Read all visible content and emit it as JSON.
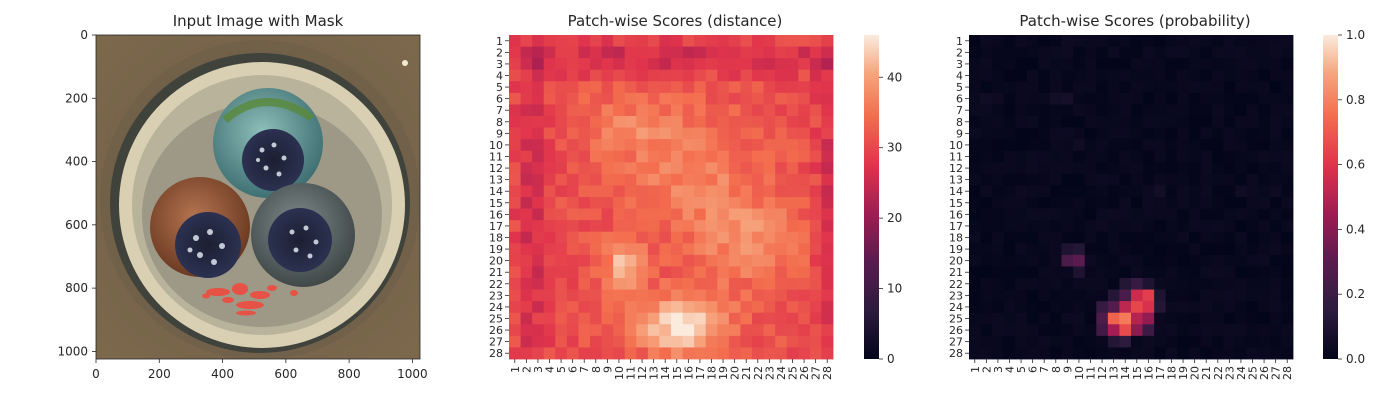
{
  "panels": {
    "image": {
      "title": "Input Image with Mask",
      "x_ticks": [
        "0",
        "200",
        "400",
        "600",
        "800",
        "1000"
      ],
      "y_ticks": [
        "0",
        "200",
        "400",
        "600",
        "800",
        "1000"
      ],
      "xlim": [
        0,
        1024
      ],
      "ylim": [
        0,
        1024
      ]
    },
    "distance": {
      "title": "Patch-wise Scores (distance)"
    },
    "probability": {
      "title": "Patch-wise Scores (probability)"
    }
  },
  "chart_data": [
    {
      "type": "heatmap",
      "title": "Patch-wise Scores (distance)",
      "rows": 28,
      "cols": 28,
      "row_labels": [
        "1",
        "2",
        "3",
        "4",
        "5",
        "6",
        "7",
        "8",
        "9",
        "10",
        "11",
        "12",
        "13",
        "14",
        "15",
        "16",
        "17",
        "18",
        "19",
        "20",
        "21",
        "22",
        "23",
        "24",
        "25",
        "26",
        "27",
        "28"
      ],
      "col_labels": [
        "1",
        "2",
        "3",
        "4",
        "5",
        "6",
        "7",
        "8",
        "9",
        "10",
        "11",
        "12",
        "13",
        "14",
        "15",
        "16",
        "17",
        "18",
        "19",
        "20",
        "21",
        "22",
        "23",
        "24",
        "25",
        "26",
        "27",
        "28"
      ],
      "colorbar": {
        "min": 0,
        "max": 46,
        "ticks": [
          "0",
          "10",
          "20",
          "30",
          "40"
        ],
        "colormap": "rocket"
      },
      "model": {
        "base": 31,
        "blobs": [
          {
            "row": 24.5,
            "col": 14.5,
            "sr": 1.8,
            "sc": 2.8,
            "amp": 15
          },
          {
            "row": 19.5,
            "col": 9.5,
            "sr": 1.6,
            "sc": 1.2,
            "amp": 12
          },
          {
            "row": 17.5,
            "col": 20.5,
            "sr": 2.5,
            "sc": 3.0,
            "amp": 7
          },
          {
            "row": 11.5,
            "col": 15.5,
            "sr": 4.0,
            "sc": 4.0,
            "amp": 6
          },
          {
            "row": 7.5,
            "col": 9.5,
            "sr": 2.0,
            "sc": 3.0,
            "amp": 5
          },
          {
            "row": 1.5,
            "col": 14.5,
            "sr": 1.0,
            "sc": 14.0,
            "amp": -6
          },
          {
            "row": 14.5,
            "col": 1.5,
            "sr": 14.0,
            "sc": 1.0,
            "amp": -5
          },
          {
            "row": 14.5,
            "col": 27.5,
            "sr": 14.0,
            "sc": 1.0,
            "amp": -5
          }
        ],
        "noise": 2.5
      }
    },
    {
      "type": "heatmap",
      "title": "Patch-wise Scores (probability)",
      "rows": 28,
      "cols": 28,
      "row_labels": [
        "1",
        "2",
        "3",
        "4",
        "5",
        "6",
        "7",
        "8",
        "9",
        "10",
        "11",
        "12",
        "13",
        "14",
        "15",
        "16",
        "17",
        "18",
        "19",
        "20",
        "21",
        "22",
        "23",
        "24",
        "25",
        "26",
        "27",
        "28"
      ],
      "col_labels": [
        "1",
        "2",
        "3",
        "4",
        "5",
        "6",
        "7",
        "8",
        "9",
        "10",
        "11",
        "12",
        "13",
        "14",
        "15",
        "16",
        "17",
        "18",
        "19",
        "20",
        "21",
        "22",
        "23",
        "24",
        "25",
        "26",
        "27",
        "28"
      ],
      "colorbar": {
        "min": 0,
        "max": 1,
        "ticks": [
          "0.0",
          "0.2",
          "0.4",
          "0.6",
          "0.8",
          "1.0"
        ],
        "colormap": "rocket"
      },
      "hot_cells": [
        {
          "row": 23,
          "col": 15,
          "value": 0.55
        },
        {
          "row": 23,
          "col": 16,
          "value": 0.62
        },
        {
          "row": 24,
          "col": 14,
          "value": 0.52
        },
        {
          "row": 24,
          "col": 15,
          "value": 0.65
        },
        {
          "row": 24,
          "col": 16,
          "value": 0.58
        },
        {
          "row": 25,
          "col": 13,
          "value": 0.72
        },
        {
          "row": 25,
          "col": 14,
          "value": 0.78
        },
        {
          "row": 25,
          "col": 15,
          "value": 0.5
        },
        {
          "row": 25,
          "col": 16,
          "value": 0.42
        },
        {
          "row": 26,
          "col": 13,
          "value": 0.46
        },
        {
          "row": 26,
          "col": 14,
          "value": 0.66
        },
        {
          "row": 26,
          "col": 15,
          "value": 0.4
        },
        {
          "row": 24,
          "col": 13,
          "value": 0.28
        },
        {
          "row": 23,
          "col": 14,
          "value": 0.25
        },
        {
          "row": 22,
          "col": 15,
          "value": 0.18
        },
        {
          "row": 26,
          "col": 12,
          "value": 0.22
        },
        {
          "row": 25,
          "col": 12,
          "value": 0.26
        },
        {
          "row": 24,
          "col": 12,
          "value": 0.18
        },
        {
          "row": 23,
          "col": 13,
          "value": 0.12
        },
        {
          "row": 26,
          "col": 16,
          "value": 0.2
        },
        {
          "row": 24,
          "col": 17,
          "value": 0.12
        },
        {
          "row": 23,
          "col": 17,
          "value": 0.1
        },
        {
          "row": 27,
          "col": 14,
          "value": 0.15
        },
        {
          "row": 27,
          "col": 13,
          "value": 0.12
        },
        {
          "row": 20,
          "col": 10,
          "value": 0.3
        },
        {
          "row": 20,
          "col": 9,
          "value": 0.25
        },
        {
          "row": 19,
          "col": 10,
          "value": 0.12
        },
        {
          "row": 21,
          "col": 10,
          "value": 0.1
        },
        {
          "row": 19,
          "col": 9,
          "value": 0.1
        },
        {
          "row": 22,
          "col": 14,
          "value": 0.12
        },
        {
          "row": 22,
          "col": 16,
          "value": 0.1
        },
        {
          "row": 6,
          "col": 8,
          "value": 0.06
        },
        {
          "row": 6,
          "col": 9,
          "value": 0.07
        },
        {
          "row": 6,
          "col": 2,
          "value": 0.05
        },
        {
          "row": 14,
          "col": 17,
          "value": 0.06
        },
        {
          "row": 14,
          "col": 24,
          "value": 0.05
        },
        {
          "row": 10,
          "col": 10,
          "value": 0.05
        }
      ],
      "background_noise": 0.035
    }
  ],
  "colors": {
    "background": "#ffffff",
    "axis": "#262626"
  }
}
